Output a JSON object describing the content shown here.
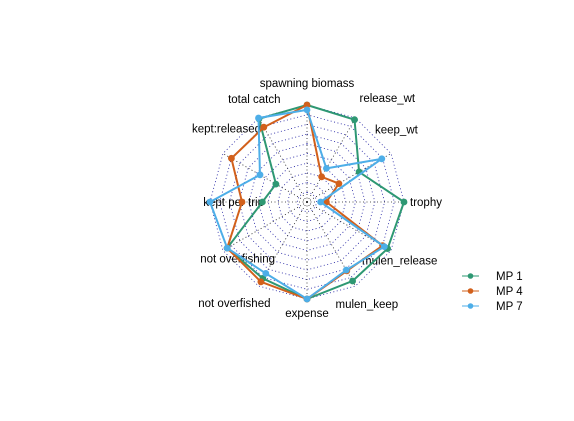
{
  "chart_data": {
    "type": "radar",
    "title": "",
    "axes": [
      "spawning biomass",
      "release_wt",
      "keep_wt",
      "trophy",
      "mulen_release",
      "mulen_keep",
      "expense",
      "not overfished",
      "not overfishing",
      "kept per trip",
      "kept:released",
      "total catch"
    ],
    "rlim": [
      0,
      1
    ],
    "grid_levels": 10,
    "grid": true,
    "legend_position": "right",
    "series": [
      {
        "name": "MP 1",
        "color": "#2e9873",
        "values": [
          1.0,
          0.98,
          0.62,
          1.0,
          0.96,
          0.94,
          1.0,
          0.91,
          0.95,
          0.46,
          0.37,
          0.99
        ]
      },
      {
        "name": "MP 4",
        "color": "#d2601b",
        "values": [
          1.0,
          0.3,
          0.38,
          0.2,
          0.9,
          0.82,
          1.0,
          0.95,
          0.95,
          0.67,
          0.9,
          0.89
        ]
      },
      {
        "name": "MP 7",
        "color": "#4daee8",
        "values": [
          0.95,
          0.4,
          0.89,
          0.14,
          0.92,
          0.81,
          1.0,
          0.85,
          0.95,
          1.0,
          0.56,
          1.0
        ]
      }
    ]
  }
}
